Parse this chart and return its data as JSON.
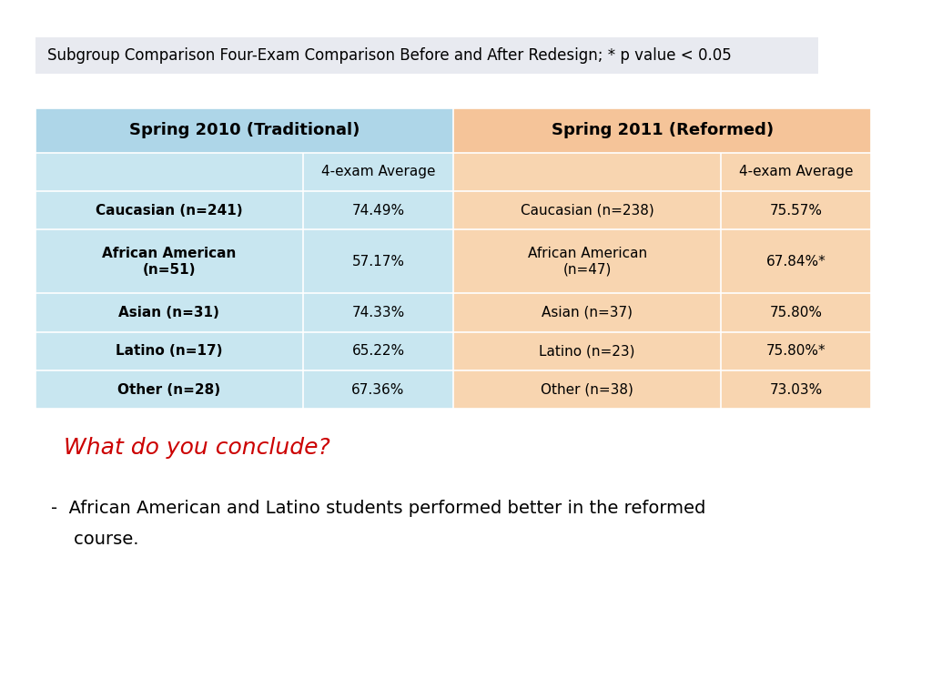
{
  "title": "Subgroup Comparison Four-Exam Comparison Before and After Redesign; * p value < 0.05",
  "title_bg": "#e8eaf0",
  "title_fontsize": 12,
  "header_left": "Spring 2010 (Traditional)",
  "header_right": "Spring 2011 (Reformed)",
  "header_left_color": "#aed6e8",
  "header_right_color": "#f5c499",
  "col_label_left": "4-exam Average",
  "col_label_right": "4-exam Average",
  "rows": [
    {
      "left_label": "Caucasian (n=241)",
      "left_val": "74.49%",
      "right_label": "Caucasian (n=238)",
      "right_val": "75.57%",
      "two_line": false
    },
    {
      "left_label": "African American\n(n=51)",
      "left_val": "57.17%",
      "right_label": "African American\n(n=47)",
      "right_val": "67.84%*",
      "two_line": true
    },
    {
      "left_label": "Asian (n=31)",
      "left_val": "74.33%",
      "right_label": "Asian (n=37)",
      "right_val": "75.80%",
      "two_line": false
    },
    {
      "left_label": "Latino (n=17)",
      "left_val": "65.22%",
      "right_label": "Latino (n=23)",
      "right_val": "75.80%*",
      "two_line": false
    },
    {
      "left_label": "Other (n=28)",
      "left_val": "67.36%",
      "right_label": "Other (n=38)",
      "right_val": "73.03%",
      "two_line": false
    }
  ],
  "row_color_light_blue": "#c8e6f0",
  "row_color_light_orange": "#f8d5b0",
  "conclude_text": "What do you conclude?",
  "conclude_color": "#cc0000",
  "conclude_fontsize": 18,
  "bullet_text": "-  African American and Latino students performed better in the reformed\n    course.",
  "bullet_fontsize": 14,
  "bg_color": "#ffffff"
}
